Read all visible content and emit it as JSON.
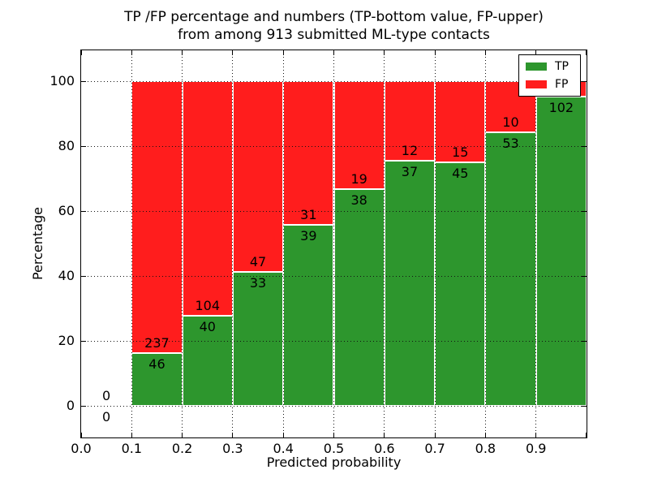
{
  "chart_data": {
    "type": "bar",
    "stacked": true,
    "normalized_to_percent": true,
    "title_line1": "TP /FP percentage and numbers (TP-bottom value, FP-upper)",
    "title_line2": "from among 913 submitted ML-type contacts",
    "submitted_total": 913,
    "xlabel": "Predicted probability",
    "ylabel": "Percentage",
    "xlim": [
      0.0,
      1.0
    ],
    "ylim": [
      -10,
      110
    ],
    "grid": true,
    "x_ticks": [
      {
        "value": 0.0,
        "label": "0.0"
      },
      {
        "value": 0.1,
        "label": "0.1"
      },
      {
        "value": 0.2,
        "label": "0.2"
      },
      {
        "value": 0.3,
        "label": "0.3"
      },
      {
        "value": 0.4,
        "label": "0.4"
      },
      {
        "value": 0.5,
        "label": "0.5"
      },
      {
        "value": 0.6,
        "label": "0.6"
      },
      {
        "value": 0.7,
        "label": "0.7"
      },
      {
        "value": 0.8,
        "label": "0.8"
      },
      {
        "value": 0.9,
        "label": "0.9"
      },
      {
        "value": 1.0,
        "label": ""
      }
    ],
    "y_ticks": [
      {
        "value": 0,
        "label": "0"
      },
      {
        "value": 20,
        "label": "20"
      },
      {
        "value": 40,
        "label": "40"
      },
      {
        "value": 60,
        "label": "60"
      },
      {
        "value": 80,
        "label": "80"
      },
      {
        "value": 100,
        "label": "100"
      }
    ],
    "legend": {
      "position": "upper-right",
      "entries": [
        {
          "label": "TP",
          "color": "#2d962d"
        },
        {
          "label": "FP",
          "color": "#ff1d1d"
        }
      ]
    },
    "colors": {
      "tp": "#2d962d",
      "fp": "#ff1d1d",
      "bar_edge": "#ffffff",
      "frame": "#000000"
    },
    "bins": [
      {
        "x0": 0.0,
        "x1": 0.1,
        "tp_count": 0,
        "fp_count": 0,
        "tp_pct": 0,
        "has_bar": false,
        "show_fp_label": true
      },
      {
        "x0": 0.1,
        "x1": 0.2,
        "tp_count": 46,
        "fp_count": 237,
        "tp_pct": 16.25,
        "has_bar": true,
        "show_fp_label": true
      },
      {
        "x0": 0.2,
        "x1": 0.3,
        "tp_count": 40,
        "fp_count": 104,
        "tp_pct": 27.78,
        "has_bar": true,
        "show_fp_label": true
      },
      {
        "x0": 0.3,
        "x1": 0.4,
        "tp_count": 33,
        "fp_count": 47,
        "tp_pct": 41.25,
        "has_bar": true,
        "show_fp_label": true
      },
      {
        "x0": 0.4,
        "x1": 0.5,
        "tp_count": 39,
        "fp_count": 31,
        "tp_pct": 55.71,
        "has_bar": true,
        "show_fp_label": true
      },
      {
        "x0": 0.5,
        "x1": 0.6,
        "tp_count": 38,
        "fp_count": 19,
        "tp_pct": 66.67,
        "has_bar": true,
        "show_fp_label": true
      },
      {
        "x0": 0.6,
        "x1": 0.7,
        "tp_count": 37,
        "fp_count": 12,
        "tp_pct": 75.51,
        "has_bar": true,
        "show_fp_label": true
      },
      {
        "x0": 0.7,
        "x1": 0.8,
        "tp_count": 45,
        "fp_count": 15,
        "tp_pct": 75.0,
        "has_bar": true,
        "show_fp_label": true
      },
      {
        "x0": 0.8,
        "x1": 0.9,
        "tp_count": 53,
        "fp_count": 10,
        "tp_pct": 84.13,
        "has_bar": true,
        "show_fp_label": true
      },
      {
        "x0": 0.9,
        "x1": 1.0,
        "tp_count": 102,
        "fp_count": null,
        "tp_pct": 95.33,
        "has_bar": true,
        "show_fp_label": false
      }
    ]
  }
}
